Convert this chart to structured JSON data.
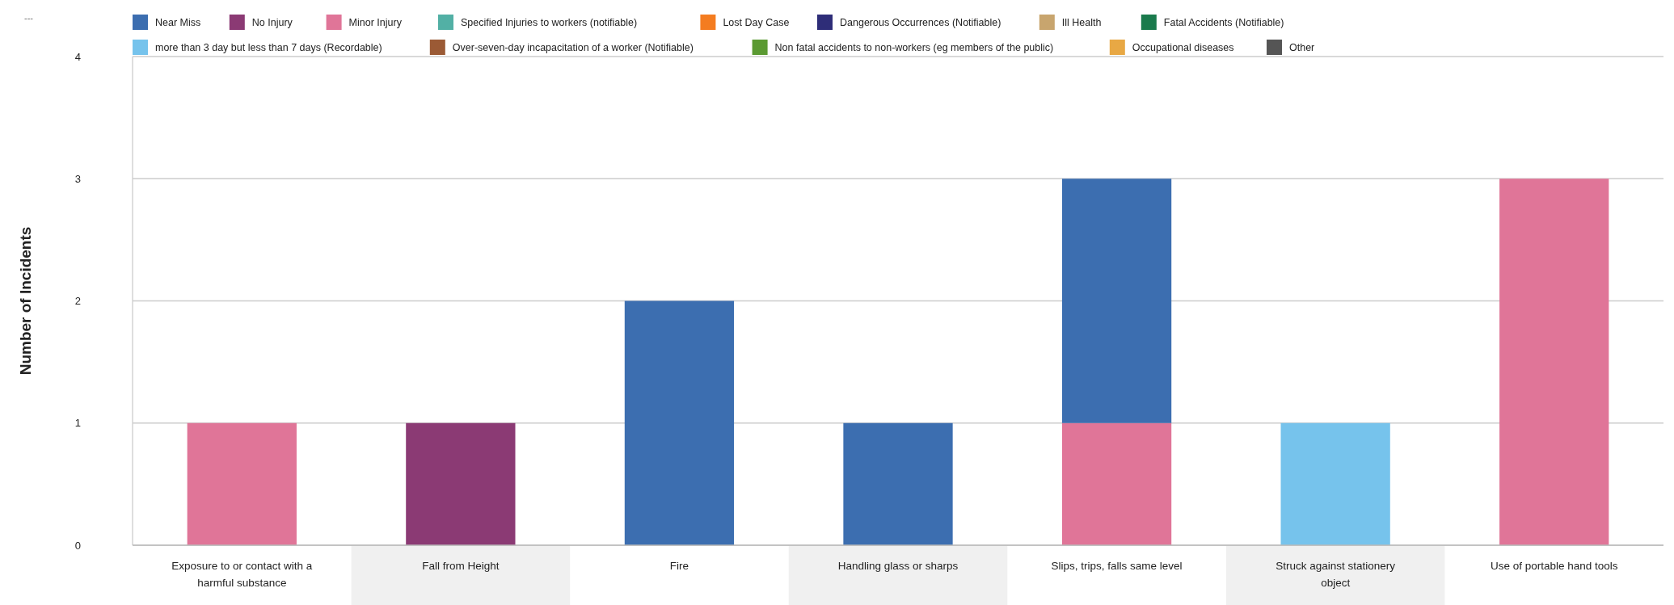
{
  "chart_data": {
    "type": "bar",
    "stacked": true,
    "ylabel": "Number of Incidents",
    "annotations": [
      "---"
    ],
    "categories": [
      "Exposure to or contact with a harmful substance",
      "Fall from Height",
      "Fire",
      "Handling glass or sharps",
      "Slips, trips, falls same level",
      "Struck against stationery object",
      "Use of portable hand tools"
    ],
    "ylim": [
      0,
      4
    ],
    "yticks": [
      0,
      1,
      2,
      3,
      4
    ],
    "grid": "y",
    "legend": "top",
    "series": [
      {
        "name": "Other",
        "color": "#555555",
        "values": [
          null,
          null,
          null,
          null,
          null,
          null,
          null
        ]
      },
      {
        "name": "Occupational diseases",
        "color": "#e8a844",
        "values": [
          null,
          null,
          null,
          null,
          null,
          null,
          null
        ]
      },
      {
        "name": "Non fatal accidents to non-workers (eg members of the public)",
        "color": "#5b9a32",
        "values": [
          null,
          null,
          null,
          null,
          null,
          null,
          null
        ]
      },
      {
        "name": "Over-seven-day incapacitation of a worker (Notifiable)",
        "color": "#9b5a35",
        "values": [
          null,
          null,
          null,
          null,
          null,
          null,
          null
        ]
      },
      {
        "name": "more than 3 day but less than 7 days (Recordable)",
        "color": "#76c3ec",
        "values": [
          null,
          null,
          null,
          null,
          null,
          1,
          null
        ]
      },
      {
        "name": "Fatal Accidents (Notifiable)",
        "color": "#1a7a4c",
        "values": [
          null,
          null,
          null,
          null,
          null,
          null,
          null
        ]
      },
      {
        "name": "Ill Health",
        "color": "#c8a56e",
        "values": [
          null,
          null,
          null,
          null,
          null,
          null,
          null
        ]
      },
      {
        "name": "Dangerous Occurrences (Notifiable)",
        "color": "#2e2d78",
        "values": [
          null,
          null,
          null,
          null,
          null,
          null,
          null
        ]
      },
      {
        "name": "Lost Day Case",
        "color": "#f47c20",
        "values": [
          null,
          null,
          null,
          null,
          null,
          null,
          null
        ]
      },
      {
        "name": "Specified Injuries to workers (notifiable)",
        "color": "#52b0a5",
        "values": [
          null,
          null,
          null,
          null,
          null,
          null,
          null
        ]
      },
      {
        "name": "Minor Injury",
        "color": "#e07598",
        "values": [
          1,
          null,
          null,
          null,
          1,
          null,
          3
        ]
      },
      {
        "name": "No Injury",
        "color": "#8b3a74",
        "values": [
          null,
          1,
          null,
          null,
          null,
          null,
          null
        ]
      },
      {
        "name": "Near Miss",
        "color": "#3c6eb0",
        "values": [
          null,
          null,
          2,
          1,
          2,
          null,
          null
        ]
      }
    ]
  }
}
